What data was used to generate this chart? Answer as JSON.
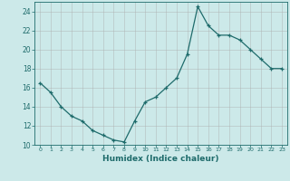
{
  "x": [
    0,
    1,
    2,
    3,
    4,
    5,
    6,
    7,
    8,
    9,
    10,
    11,
    12,
    13,
    14,
    15,
    16,
    17,
    18,
    19,
    20,
    21,
    22,
    23
  ],
  "y": [
    16.5,
    15.5,
    14.0,
    13.0,
    12.5,
    11.5,
    11.0,
    10.5,
    10.3,
    12.5,
    14.5,
    15.0,
    16.0,
    17.0,
    19.5,
    24.5,
    22.5,
    21.5,
    21.5,
    21.0,
    20.0,
    19.0,
    18.0,
    18.0
  ],
  "xlabel": "Humidex (Indice chaleur)",
  "ylim": [
    10,
    25
  ],
  "xlim": [
    -0.5,
    23.5
  ],
  "yticks": [
    10,
    12,
    14,
    16,
    18,
    20,
    22,
    24
  ],
  "xtick_labels": [
    "0",
    "1",
    "2",
    "3",
    "4",
    "5",
    "6",
    "7",
    "8",
    "9",
    "10",
    "11",
    "12",
    "13",
    "14",
    "15",
    "16",
    "17",
    "18",
    "19",
    "20",
    "21",
    "22",
    "23"
  ],
  "line_color": "#1e6b6b",
  "marker": "+",
  "bg_color": "#cce9e9",
  "grid_color": "#b0d8d8"
}
